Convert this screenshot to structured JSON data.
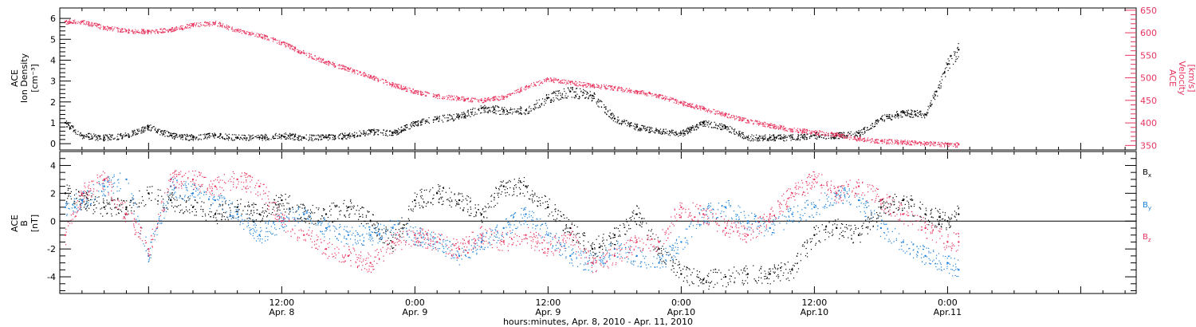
{
  "colors": {
    "density": "#000000",
    "velocity": "#e8355f",
    "bx": "#000000",
    "by": "#1a7fd9",
    "bz": "#e8355f",
    "axis": "#000000"
  },
  "xaxis": {
    "label": "hours:minutes, Apr.  8, 2010 - Apr. 11, 2010",
    "range_hours": [
      -8,
      89
    ],
    "ticks": [
      {
        "hour": 12,
        "time": "12:00",
        "date": "Apr. 8"
      },
      {
        "hour": 24,
        "time": "0:00",
        "date": "Apr. 9"
      },
      {
        "hour": 36,
        "time": "12:00",
        "date": "Apr. 9"
      },
      {
        "hour": 48,
        "time": "0:00",
        "date": "Apr.10"
      },
      {
        "hour": 60,
        "time": "12:00",
        "date": "Apr.10"
      },
      {
        "hour": 72,
        "time": "0:00",
        "date": "Apr.11"
      }
    ]
  },
  "chart_data": [
    {
      "type": "scatter",
      "panel": "top",
      "left_axis": {
        "label_lines": [
          "ACE",
          "Ion Density",
          "[cm⁻³]"
        ],
        "ylim": [
          -0.3,
          6.5
        ],
        "ticks": [
          0,
          1,
          2,
          3,
          4,
          5,
          6
        ]
      },
      "right_axis": {
        "label_lines": [
          "ACE",
          "Velocity",
          "[km/s]"
        ],
        "ylim": [
          340,
          655
        ],
        "ticks": [
          350,
          400,
          450,
          500,
          550,
          600,
          650
        ]
      },
      "series": [
        {
          "key": "density",
          "axis": "left",
          "x": [
            -7.5,
            -6,
            -4,
            -2,
            0,
            2,
            4,
            6,
            8,
            10,
            12,
            14,
            16,
            18,
            20,
            22,
            24,
            26,
            28,
            30,
            32,
            34,
            36,
            38,
            40,
            42,
            44,
            46,
            48,
            50,
            52,
            54,
            56,
            58,
            60,
            62,
            64,
            66,
            68,
            70,
            71,
            72,
            73
          ],
          "y": [
            1.0,
            0.4,
            0.3,
            0.4,
            0.8,
            0.4,
            0.3,
            0.4,
            0.3,
            0.3,
            0.4,
            0.3,
            0.3,
            0.4,
            0.6,
            0.5,
            1.0,
            1.2,
            1.3,
            1.7,
            1.6,
            1.6,
            2.2,
            2.5,
            2.3,
            1.2,
            0.8,
            0.6,
            0.5,
            1.0,
            0.8,
            0.3,
            0.3,
            0.3,
            0.4,
            0.4,
            0.5,
            1.2,
            1.5,
            1.4,
            2.5,
            3.8,
            4.5
          ]
        },
        {
          "key": "velocity",
          "axis": "right",
          "x": [
            -7.5,
            -6,
            -4,
            -2,
            0,
            2,
            4,
            6,
            8,
            10,
            12,
            14,
            16,
            18,
            20,
            22,
            24,
            26,
            28,
            30,
            32,
            34,
            36,
            38,
            40,
            42,
            44,
            46,
            48,
            50,
            52,
            54,
            56,
            58,
            60,
            62,
            64,
            66,
            68,
            70,
            72,
            73
          ],
          "y": [
            625,
            625,
            612,
            605,
            603,
            607,
            618,
            622,
            605,
            595,
            578,
            555,
            535,
            520,
            503,
            485,
            470,
            460,
            455,
            450,
            458,
            480,
            497,
            490,
            483,
            478,
            470,
            460,
            445,
            432,
            418,
            405,
            395,
            385,
            380,
            375,
            365,
            360,
            358,
            355,
            352,
            352
          ]
        }
      ]
    },
    {
      "type": "scatter",
      "panel": "bottom",
      "left_axis": {
        "label_lines": [
          "ACE",
          "B",
          "[nT]"
        ],
        "ylim": [
          -5.2,
          5.0
        ],
        "ticks": [
          -4,
          -2,
          0,
          2,
          4
        ]
      },
      "zero_line": 0,
      "series": [
        {
          "key": "bx",
          "name": "Bx",
          "x": [
            -7.5,
            -6,
            -4,
            -2,
            0,
            2,
            4,
            6,
            8,
            10,
            12,
            14,
            16,
            18,
            20,
            22,
            24,
            26,
            28,
            30,
            32,
            34,
            36,
            38,
            40,
            42,
            44,
            46,
            48,
            50,
            52,
            54,
            56,
            58,
            60,
            62,
            64,
            66,
            68,
            70,
            72,
            73
          ],
          "y": [
            2.0,
            1.5,
            1.0,
            1.0,
            2.0,
            1.5,
            1.0,
            0.5,
            1.0,
            0.5,
            1.5,
            0.5,
            0.5,
            1.0,
            0.0,
            -1.5,
            1.5,
            2.0,
            1.5,
            0.5,
            2.5,
            2.5,
            1.0,
            -0.5,
            -2.0,
            -1.0,
            0.5,
            -2.0,
            -3.8,
            -4.2,
            -4.0,
            -3.8,
            -3.8,
            -3.5,
            -1.0,
            -0.5,
            -1.0,
            1.0,
            1.5,
            0.5,
            0.0,
            0.5
          ]
        },
        {
          "key": "by",
          "name": "By",
          "x": [
            -7.5,
            -6,
            -4,
            -2,
            0,
            2,
            4,
            6,
            8,
            10,
            12,
            14,
            16,
            18,
            20,
            22,
            24,
            26,
            28,
            30,
            32,
            34,
            36,
            38,
            40,
            42,
            44,
            46,
            48,
            50,
            52,
            54,
            56,
            58,
            60,
            62,
            64,
            66,
            68,
            70,
            72,
            73
          ],
          "y": [
            1.0,
            1.5,
            2.5,
            3.0,
            -2.5,
            2.5,
            2.0,
            1.5,
            0.5,
            -1.0,
            0.0,
            0.5,
            -0.5,
            -1.0,
            -1.0,
            -0.5,
            -1.0,
            -1.5,
            -2.5,
            -1.5,
            -0.5,
            0.5,
            -1.0,
            -2.5,
            -3.0,
            -2.0,
            -2.5,
            -3.0,
            -1.5,
            0.5,
            1.0,
            0.0,
            -0.5,
            0.5,
            1.0,
            2.0,
            1.5,
            -0.5,
            -1.5,
            -2.5,
            -3.0,
            -3.5
          ]
        },
        {
          "key": "bz",
          "name": "Bz",
          "x": [
            -7.5,
            -6,
            -4,
            -2,
            0,
            2,
            4,
            6,
            8,
            10,
            12,
            14,
            16,
            18,
            20,
            22,
            24,
            26,
            28,
            30,
            32,
            34,
            36,
            38,
            40,
            42,
            44,
            46,
            48,
            50,
            52,
            54,
            56,
            58,
            60,
            62,
            64,
            66,
            68,
            70,
            72,
            73
          ],
          "y": [
            -1.0,
            2.0,
            3.0,
            0.5,
            -2.0,
            3.0,
            3.0,
            2.5,
            3.0,
            2.5,
            0.0,
            -1.0,
            -2.0,
            -2.5,
            -3.0,
            -1.5,
            -1.0,
            -1.5,
            -2.0,
            -1.0,
            -1.5,
            -1.0,
            -2.0,
            -1.0,
            -3.0,
            -2.5,
            -1.5,
            -1.5,
            1.0,
            0.5,
            -0.5,
            -1.0,
            0.5,
            2.0,
            3.0,
            2.0,
            2.5,
            1.5,
            0.5,
            -0.5,
            -1.5,
            -1.5
          ]
        }
      ]
    }
  ]
}
